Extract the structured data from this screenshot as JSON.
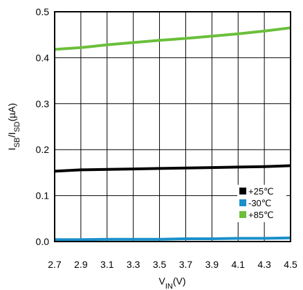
{
  "chart_data": {
    "type": "line",
    "xlabel_main": "V",
    "xlabel_sub": "IN",
    "xlabel_tail": "(V)",
    "ylabel_parts": [
      {
        "t": "I",
        "sub": false
      },
      {
        "t": "SB",
        "sub": true
      },
      {
        "t": "/I",
        "sub": false
      },
      {
        "t": "SD",
        "sub": true
      },
      {
        "t": "(µA)",
        "sub": false
      }
    ],
    "xlim": [
      2.7,
      4.5
    ],
    "ylim": [
      0,
      0.5
    ],
    "x_ticks": [
      "2.7",
      "2.9",
      "3.1",
      "3.3",
      "3.5",
      "3.7",
      "3.9",
      "4.1",
      "4.3",
      "4.5"
    ],
    "x_tick_values": [
      2.7,
      2.9,
      3.1,
      3.3,
      3.5,
      3.7,
      3.9,
      4.1,
      4.3,
      4.5
    ],
    "y_ticks": [
      "0.0",
      "0.1",
      "0.2",
      "0.3",
      "0.4",
      "0.5"
    ],
    "y_tick_values": [
      0,
      0.1,
      0.2,
      0.3,
      0.4,
      0.5
    ],
    "grid": true,
    "legend_position": "bottom-right",
    "series": [
      {
        "name": "+25℃",
        "color": "#000000",
        "x": [
          2.7,
          2.9,
          3.1,
          3.3,
          3.5,
          3.7,
          3.9,
          4.1,
          4.3,
          4.5
        ],
        "values": [
          0.153,
          0.156,
          0.157,
          0.158,
          0.159,
          0.16,
          0.161,
          0.162,
          0.163,
          0.165
        ]
      },
      {
        "name": "-30℃",
        "color": "#1a8fc9",
        "x": [
          2.7,
          2.9,
          3.1,
          3.3,
          3.5,
          3.7,
          3.9,
          4.1,
          4.3,
          4.5
        ],
        "values": [
          0.004,
          0.004,
          0.005,
          0.005,
          0.005,
          0.006,
          0.006,
          0.007,
          0.007,
          0.008
        ]
      },
      {
        "name": "+85℃",
        "color": "#6abf3a",
        "x": [
          2.7,
          2.9,
          3.1,
          3.3,
          3.5,
          3.7,
          3.9,
          4.1,
          4.3,
          4.5
        ],
        "values": [
          0.418,
          0.422,
          0.428,
          0.433,
          0.438,
          0.442,
          0.447,
          0.452,
          0.458,
          0.465
        ]
      }
    ]
  }
}
